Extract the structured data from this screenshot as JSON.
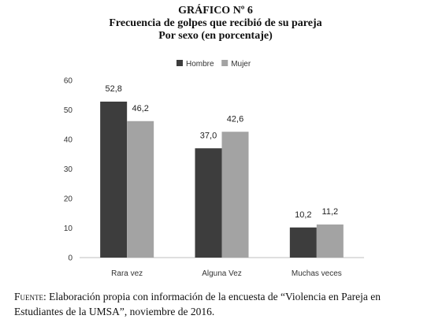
{
  "header": {
    "chart_number": "GRÁFICO Nº 6",
    "title": "Frecuencia de golpes que recibió de su pareja",
    "subtitle": "Por sexo (en porcentaje)"
  },
  "colors": {
    "hombre": "#3d3d3d",
    "mujer": "#a3a3a3",
    "axis": "#bfbfbf"
  },
  "chart_data": {
    "type": "bar",
    "categories": [
      "Rara vez",
      "Alguna Vez",
      "Muchas veces"
    ],
    "series": [
      {
        "name": "Hombre",
        "values": [
          52.8,
          37.0,
          10.2
        ],
        "labels": [
          "52,8",
          "37,0",
          "10,2"
        ]
      },
      {
        "name": "Mujer",
        "values": [
          46.2,
          42.6,
          11.2
        ],
        "labels": [
          "46,2",
          "42,6",
          "11,2"
        ]
      }
    ],
    "ylim": [
      0,
      60
    ],
    "yticks": [
      0,
      10,
      20,
      30,
      40,
      50,
      60
    ],
    "grid": false,
    "legend": "top-center"
  },
  "source": {
    "label": "Fuente",
    "text": ": Elaboración propia con información de la encuesta de “Violencia en Pareja en Estudiantes de la UMSA”, noviembre de 2016."
  }
}
